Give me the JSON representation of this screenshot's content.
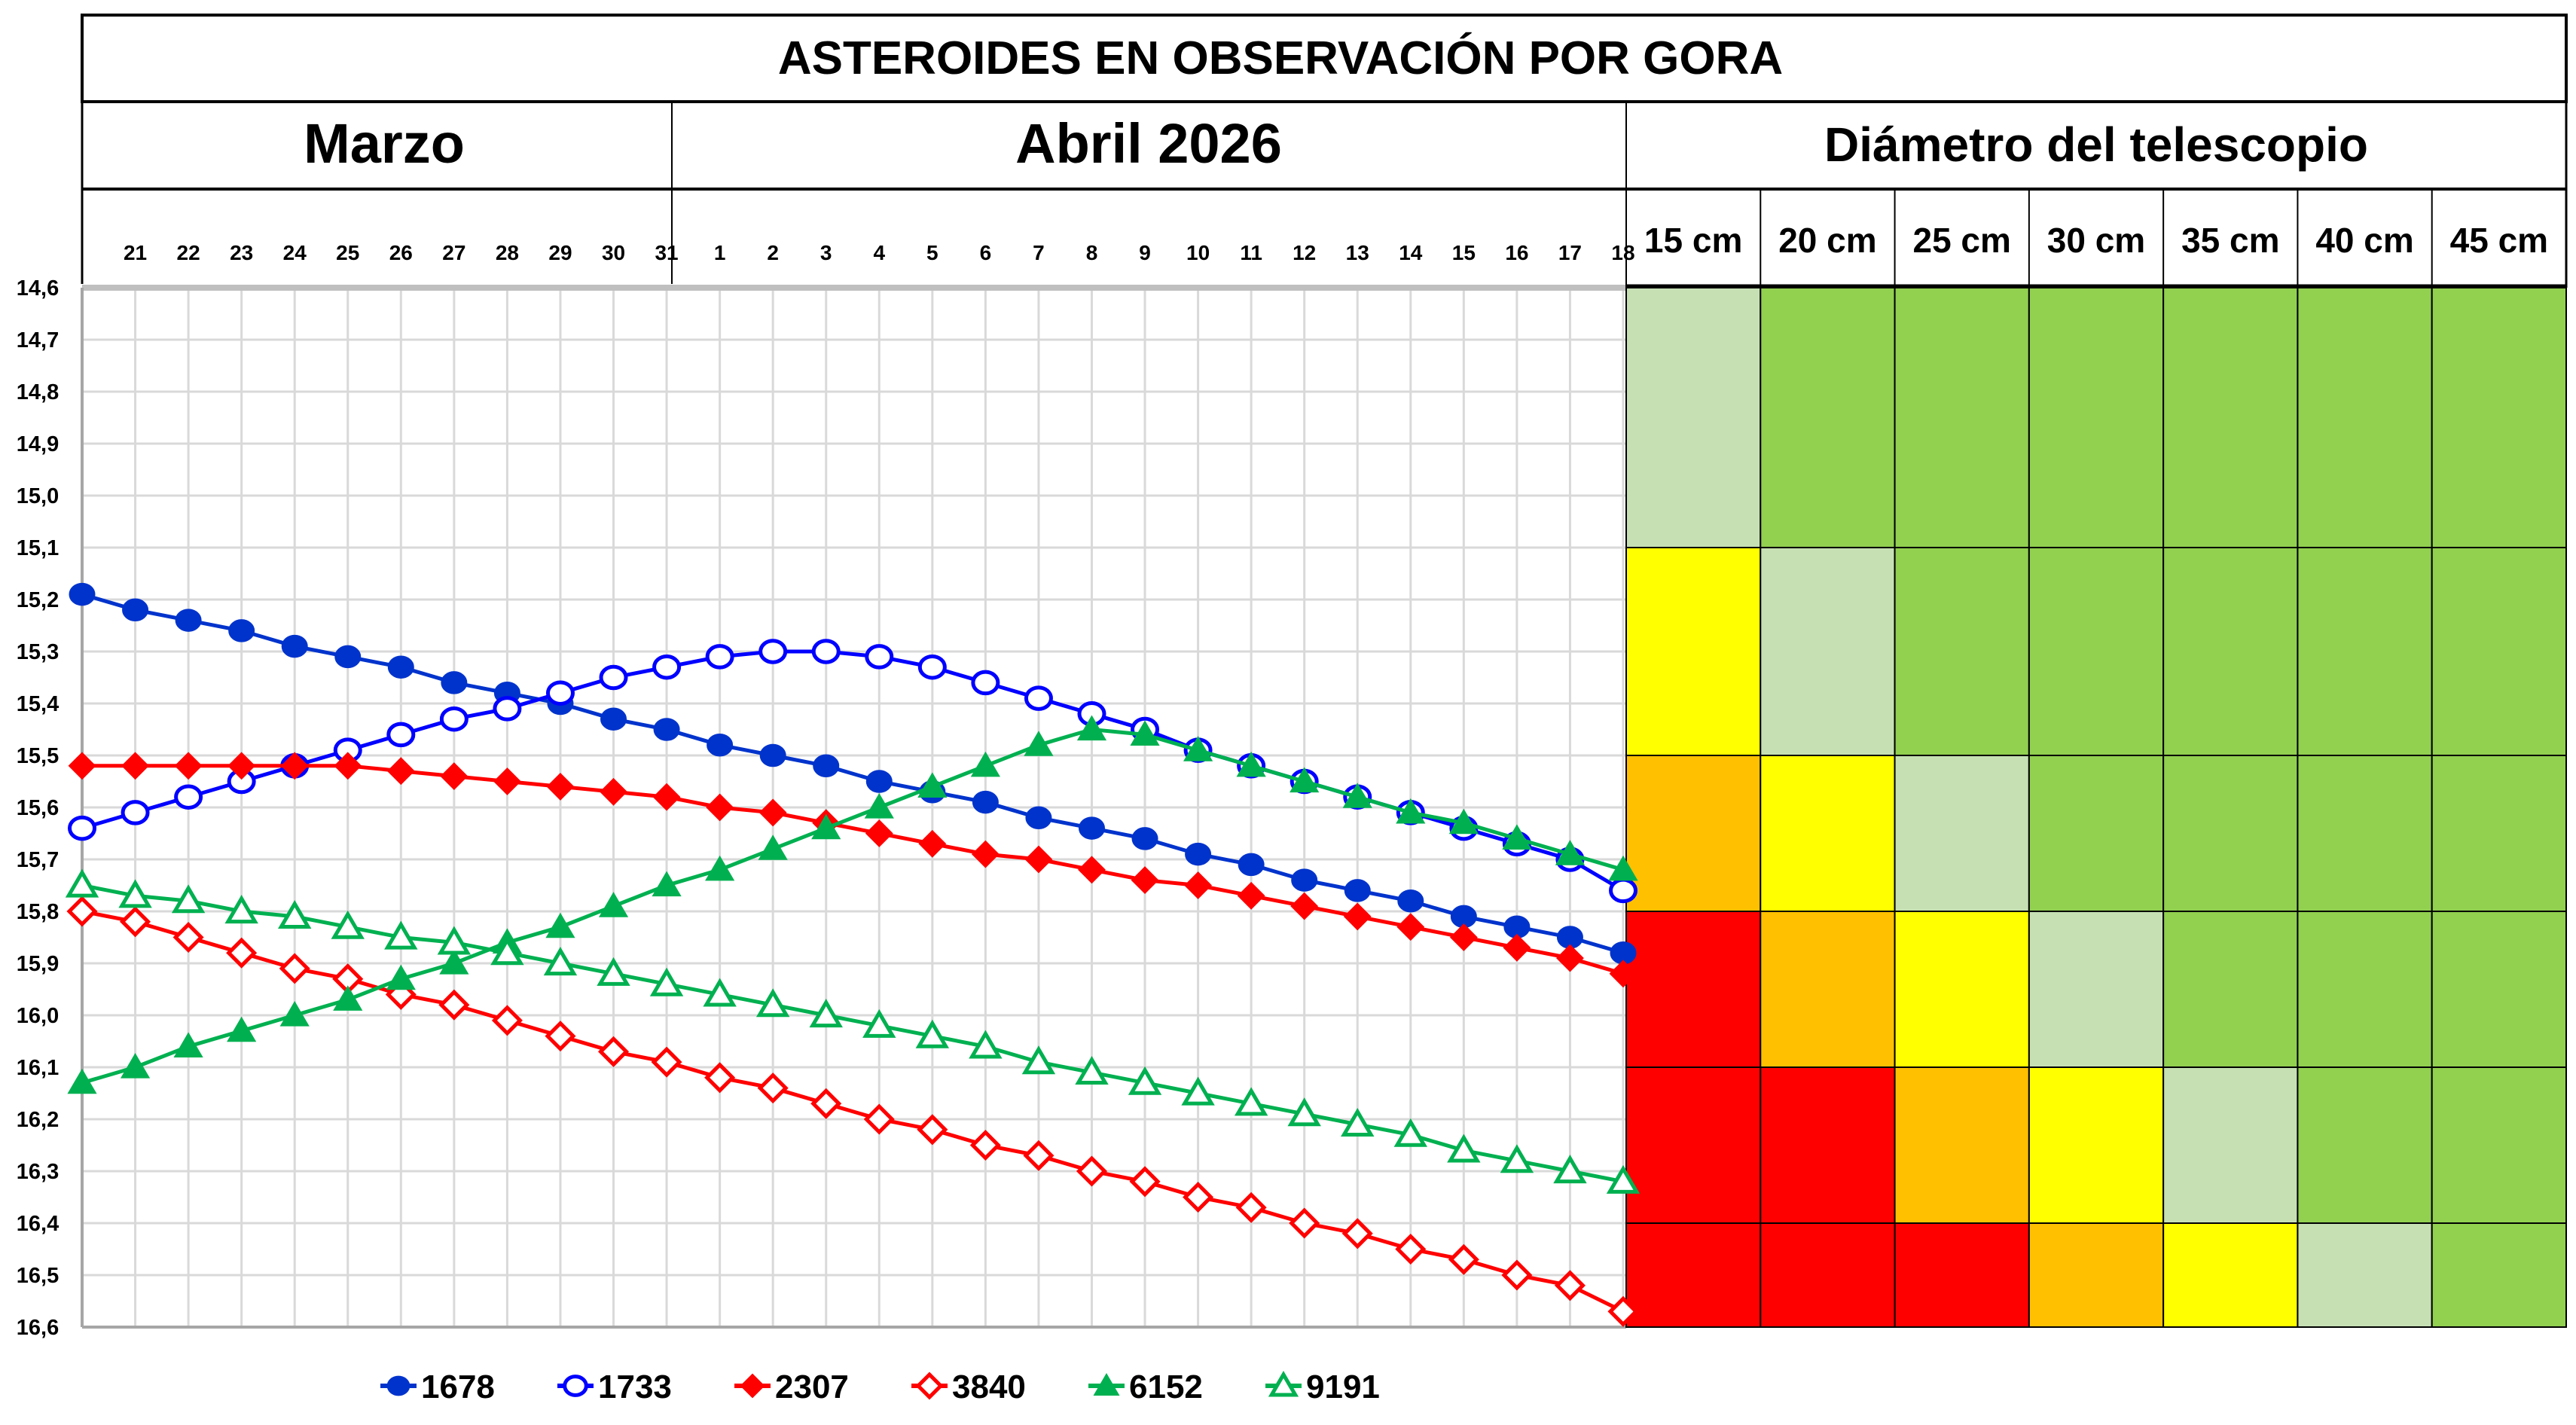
{
  "header": {
    "title": "ASTEROIDES EN OBSERVACIÓN POR GORA",
    "month_march": "Marzo",
    "month_april": "Abril 2026",
    "telescope_title": "Diámetro del telescopio"
  },
  "chart_data": {
    "type": "line",
    "x": [
      "20",
      "21",
      "22",
      "23",
      "24",
      "25",
      "26",
      "27",
      "28",
      "29",
      "30",
      "31",
      "1",
      "2",
      "3",
      "4",
      "5",
      "6",
      "7",
      "8",
      "9",
      "10",
      "11",
      "12",
      "13",
      "14",
      "15",
      "16",
      "17",
      "18"
    ],
    "x_tick_labels": [
      "21",
      "22",
      "23",
      "24",
      "25",
      "26",
      "27",
      "28",
      "29",
      "30",
      "31",
      "1",
      "2",
      "3",
      "4",
      "5",
      "6",
      "7",
      "8",
      "9",
      "10",
      "11",
      "12",
      "13",
      "14",
      "15",
      "16",
      "17",
      "18"
    ],
    "ylim": [
      14.6,
      16.6
    ],
    "y_inverted": true,
    "y_ticks": [
      "14,6",
      "14,7",
      "14,8",
      "14,9",
      "15,0",
      "15,1",
      "15,2",
      "15,3",
      "15,4",
      "15,5",
      "15,6",
      "15,7",
      "15,8",
      "15,9",
      "16,0",
      "16,1",
      "16,2",
      "16,3",
      "16,4",
      "16,5",
      "16,6"
    ],
    "grid": true,
    "legend_position": "bottom",
    "series": [
      {
        "name": "1678",
        "color": "#0033cc",
        "marker": "circle",
        "filled": true,
        "values": [
          15.19,
          15.22,
          15.24,
          15.26,
          15.29,
          15.31,
          15.33,
          15.36,
          15.38,
          15.4,
          15.43,
          15.45,
          15.48,
          15.5,
          15.52,
          15.55,
          15.57,
          15.59,
          15.62,
          15.64,
          15.66,
          15.69,
          15.71,
          15.74,
          15.76,
          15.78,
          15.81,
          15.83,
          15.85,
          15.88
        ]
      },
      {
        "name": "1733",
        "color": "#0000ff",
        "marker": "circle",
        "filled": false,
        "values": [
          15.64,
          15.61,
          15.58,
          15.55,
          15.52,
          15.49,
          15.46,
          15.43,
          15.41,
          15.38,
          15.35,
          15.33,
          15.31,
          15.3,
          15.3,
          15.31,
          15.33,
          15.36,
          15.39,
          15.42,
          15.45,
          15.49,
          15.52,
          15.55,
          15.58,
          15.61,
          15.64,
          15.67,
          15.7,
          15.76
        ]
      },
      {
        "name": "2307",
        "color": "#ff0000",
        "marker": "diamond",
        "filled": true,
        "values": [
          15.52,
          15.52,
          15.52,
          15.52,
          15.52,
          15.52,
          15.53,
          15.54,
          15.55,
          15.56,
          15.57,
          15.58,
          15.6,
          15.61,
          15.63,
          15.65,
          15.67,
          15.69,
          15.7,
          15.72,
          15.74,
          15.75,
          15.77,
          15.79,
          15.81,
          15.83,
          15.85,
          15.87,
          15.89,
          15.92
        ]
      },
      {
        "name": "3840",
        "color": "#ff0000",
        "marker": "diamond",
        "filled": false,
        "values": [
          15.8,
          15.82,
          15.85,
          15.88,
          15.91,
          15.93,
          15.96,
          15.98,
          16.01,
          16.04,
          16.07,
          16.09,
          16.12,
          16.14,
          16.17,
          16.2,
          16.22,
          16.25,
          16.27,
          16.3,
          16.32,
          16.35,
          16.37,
          16.4,
          16.42,
          16.45,
          16.47,
          16.5,
          16.52,
          16.57
        ]
      },
      {
        "name": "6152",
        "color": "#00b050",
        "marker": "triangle",
        "filled": true,
        "values": [
          16.13,
          16.1,
          16.06,
          16.03,
          16.0,
          15.97,
          15.93,
          15.9,
          15.86,
          15.83,
          15.79,
          15.75,
          15.72,
          15.68,
          15.64,
          15.6,
          15.56,
          15.52,
          15.48,
          15.45,
          15.46,
          15.49,
          15.52,
          15.55,
          15.58,
          15.61,
          15.63,
          15.66,
          15.69,
          15.72
        ]
      },
      {
        "name": "9191",
        "color": "#00b050",
        "marker": "triangle",
        "filled": false,
        "values": [
          15.75,
          15.77,
          15.78,
          15.8,
          15.81,
          15.83,
          15.85,
          15.86,
          15.88,
          15.9,
          15.92,
          15.94,
          15.96,
          15.98,
          16.0,
          16.02,
          16.04,
          16.06,
          16.09,
          16.11,
          16.13,
          16.15,
          16.17,
          16.19,
          16.21,
          16.23,
          16.26,
          16.28,
          16.3,
          16.32
        ]
      }
    ]
  },
  "telescope_table": {
    "columns": [
      "15 cm",
      "20 cm",
      "25 cm",
      "30 cm",
      "35 cm",
      "40 cm",
      "45 cm"
    ],
    "palette": {
      "green": "#92d050",
      "light_green": "#c6e0b4",
      "yellow": "#ffff00",
      "orange": "#ffc000",
      "red": "#ff0000"
    },
    "rows": [
      {
        "mag_from": 14.6,
        "mag_to": 15.1,
        "cells": [
          "light_green",
          "green",
          "green",
          "green",
          "green",
          "green",
          "green"
        ]
      },
      {
        "mag_from": 15.1,
        "mag_to": 15.5,
        "cells": [
          "yellow",
          "light_green",
          "green",
          "green",
          "green",
          "green",
          "green"
        ]
      },
      {
        "mag_from": 15.5,
        "mag_to": 15.8,
        "cells": [
          "orange",
          "yellow",
          "light_green",
          "green",
          "green",
          "green",
          "green"
        ]
      },
      {
        "mag_from": 15.8,
        "mag_to": 16.1,
        "cells": [
          "red",
          "orange",
          "yellow",
          "light_green",
          "green",
          "green",
          "green"
        ]
      },
      {
        "mag_from": 16.1,
        "mag_to": 16.4,
        "cells": [
          "red",
          "red",
          "orange",
          "yellow",
          "light_green",
          "green",
          "green"
        ]
      },
      {
        "mag_from": 16.4,
        "mag_to": 16.6,
        "cells": [
          "red",
          "red",
          "red",
          "orange",
          "yellow",
          "light_green",
          "green"
        ]
      }
    ]
  }
}
